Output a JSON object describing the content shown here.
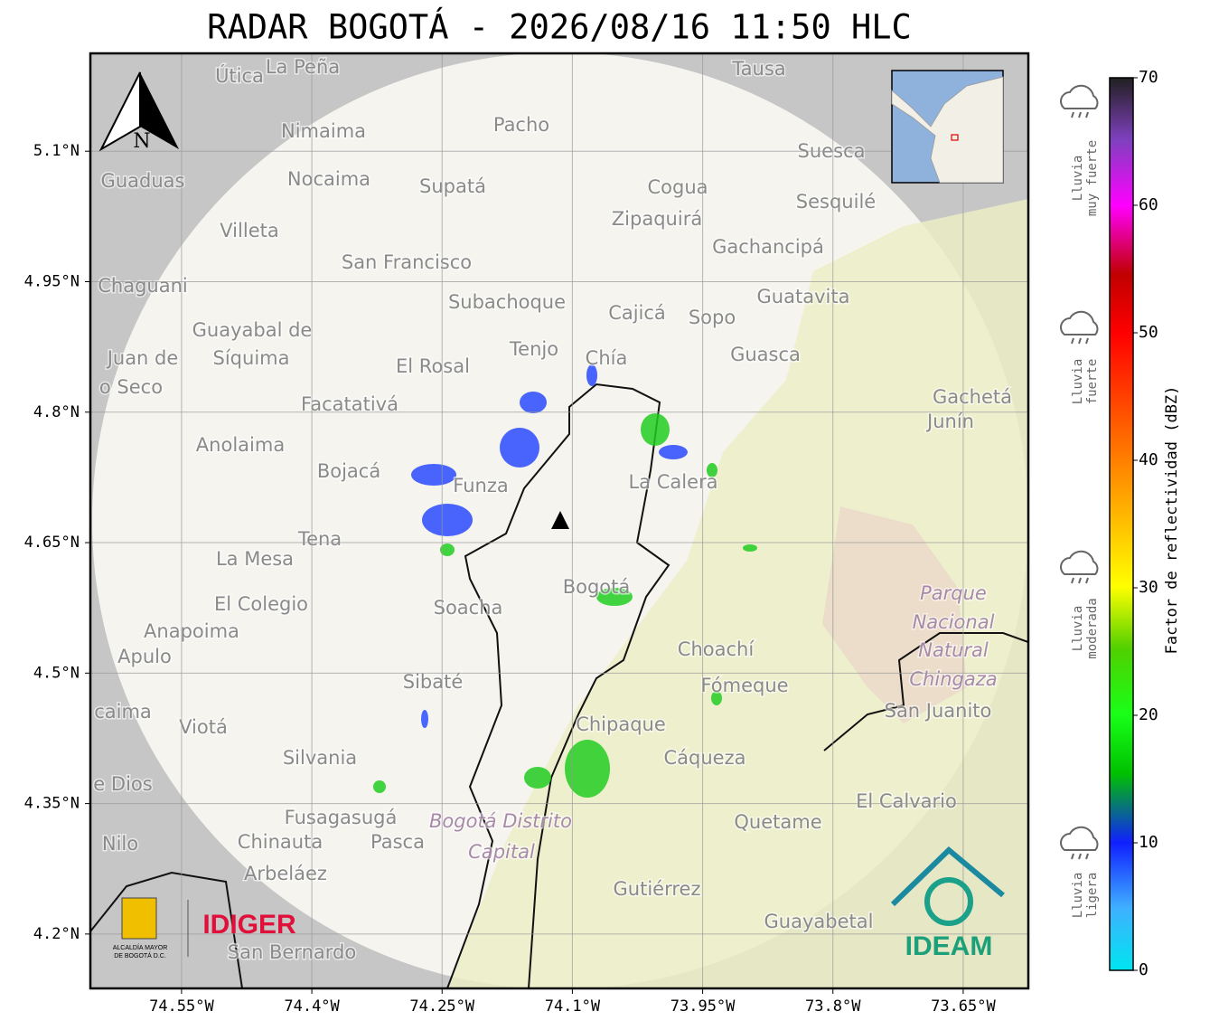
{
  "map": {
    "title": "RADAR BOGOTÁ - 2026/08/16 11:50 HLC",
    "xlim": [
      -74.655,
      -73.575
    ],
    "ylim": [
      4.1375,
      5.2125
    ],
    "xticks": [
      {
        "value": -74.55,
        "label": "74.55°W"
      },
      {
        "value": -74.4,
        "label": "74.4°W"
      },
      {
        "value": -74.25,
        "label": "74.25°W"
      },
      {
        "value": -74.1,
        "label": "74.1°W"
      },
      {
        "value": -73.95,
        "label": "73.95°W"
      },
      {
        "value": -73.8,
        "label": "73.8°W"
      },
      {
        "value": -73.65,
        "label": "73.65°W"
      }
    ],
    "yticks": [
      {
        "value": 5.1,
        "label": "5.1°N"
      },
      {
        "value": 4.95,
        "label": "4.95°N"
      },
      {
        "value": 4.8,
        "label": "4.8°N"
      },
      {
        "value": 4.65,
        "label": "4.65°N"
      },
      {
        "value": 4.5,
        "label": "4.5°N"
      },
      {
        "value": 4.35,
        "label": "4.35°N"
      },
      {
        "value": 4.2,
        "label": "4.2°N"
      }
    ],
    "north": "N",
    "places": [
      "Útica",
      "La Peña",
      "Tausa",
      "Pacho",
      "Nimaima",
      "Suesca",
      "Guaduas",
      "Nocaima",
      "Supatá",
      "Cogua",
      "Sesquilé",
      "Zipaquirá",
      "Villeta",
      "Gachancipá",
      "San Francisco",
      "Chaguani",
      "Guatavita",
      "Subachoque",
      "Cajicá",
      "Sopo",
      "Guayabal de",
      "Síquima",
      "Juan de",
      "o Seco",
      "Tenjo",
      "Chía",
      "Guasca",
      "El Rosal",
      "Facatativá",
      "Gachetá",
      "Junín",
      "Anolaima",
      "Bojacá",
      "Funza",
      "La Calera",
      "Tena",
      "La Mesa",
      "El Colegio",
      "Soacha",
      "Bogotá",
      "Anapoima",
      "Apulo",
      "Choachí",
      "Fómeque",
      "Sibaté",
      "San Juanito",
      "caima",
      "Viotá",
      "Chipaque",
      "Silvania",
      "Cáqueza",
      "e Dios",
      "El Calvario",
      "Fusagasugá",
      "Quetame",
      "Nilo",
      "Chinauta",
      "Pasca",
      "Arbeláez",
      "Gutiérrez",
      "Guayabetal",
      "San Bernardo"
    ],
    "park": [
      "Parque",
      "Nacional",
      "Natural",
      "Chingaza"
    ],
    "district": [
      "Bogotá Distrito",
      "Capital"
    ],
    "logos": {
      "alcaldia": [
        "ALCALDÍA MAYOR",
        "DE BOGOTÁ D.C."
      ],
      "idiger": "IDIGER",
      "ideam": "IDEAM"
    }
  },
  "colorbar": {
    "label": "Factor de reflectividad (dBZ)",
    "lim": [
      0,
      70
    ],
    "ticks": [
      0,
      10,
      20,
      30,
      40,
      50,
      60,
      70
    ]
  },
  "rain_legend": [
    [
      "Lluvia",
      "muy fuerte"
    ],
    [
      "Lluvia",
      "fuerte"
    ],
    [
      "Lluvia",
      "moderada"
    ],
    [
      "Lluvia",
      "ligera"
    ]
  ]
}
